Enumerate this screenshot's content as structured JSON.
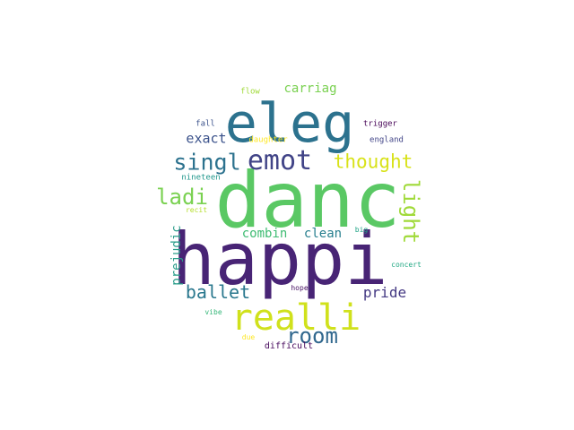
{
  "words": [
    {
      "text": "danc",
      "color": "#5ac864"
    },
    {
      "text": "happi",
      "color": "#482475"
    },
    {
      "text": "eleg",
      "color": "#2c728e"
    },
    {
      "text": "realli",
      "color": "#d0e11c"
    },
    {
      "text": "emot",
      "color": "#414487"
    },
    {
      "text": "singl",
      "color": "#2c728e"
    },
    {
      "text": "thought",
      "color": "#d8e219"
    },
    {
      "text": "ladi",
      "color": "#7ad151"
    },
    {
      "text": "light",
      "color": "#a0da39"
    },
    {
      "text": "room",
      "color": "#31688e"
    },
    {
      "text": "ballet",
      "color": "#2a788e"
    },
    {
      "text": "pride",
      "color": "#443983"
    },
    {
      "text": "exact",
      "color": "#3b528b"
    },
    {
      "text": "combin",
      "color": "#3fbc73"
    },
    {
      "text": "clean",
      "color": "#277f8e"
    },
    {
      "text": "carriag",
      "color": "#7ad151"
    },
    {
      "text": "prejudic",
      "color": "#2a9d8a"
    },
    {
      "text": "flow",
      "color": "#a0da39"
    },
    {
      "text": "fall",
      "color": "#3b528b"
    },
    {
      "text": "trigger",
      "color": "#440154"
    },
    {
      "text": "england",
      "color": "#414487"
    },
    {
      "text": "daughter",
      "color": "#fde725"
    },
    {
      "text": "nineteen",
      "color": "#1f968b"
    },
    {
      "text": "recit",
      "color": "#b5de2b"
    },
    {
      "text": "big",
      "color": "#20a386"
    },
    {
      "text": "concert",
      "color": "#22a884"
    },
    {
      "text": "hope",
      "color": "#471063"
    },
    {
      "text": "vibe",
      "color": "#35b779"
    },
    {
      "text": "due",
      "color": "#fde725"
    },
    {
      "text": "difficult",
      "color": "#46085c"
    }
  ]
}
